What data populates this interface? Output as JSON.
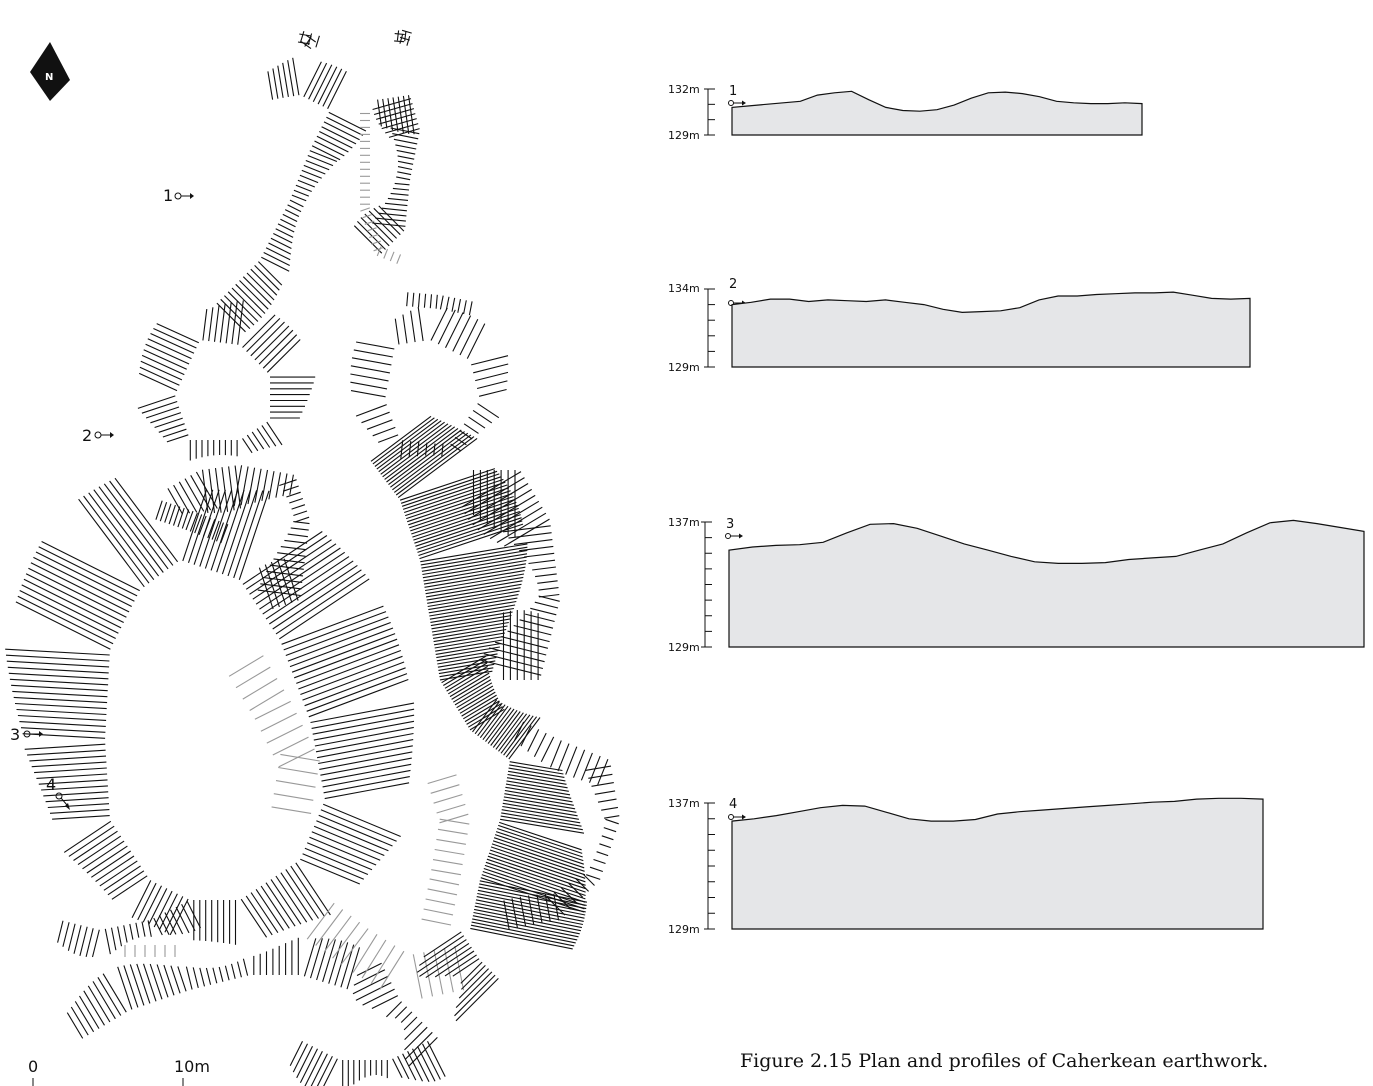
{
  "north_arrow": {
    "label": "N"
  },
  "plan": {
    "scale_bar": {
      "start_label": "0",
      "end_label": "10m"
    },
    "section_markers": [
      {
        "label": "1"
      },
      {
        "label": "2"
      },
      {
        "label": "3"
      },
      {
        "label": "4"
      }
    ]
  },
  "profiles": [
    {
      "label": "1",
      "y_top_label": "132m",
      "y_bottom_label": "129m",
      "y_range": [
        129,
        132
      ],
      "heights": [
        130.8,
        130.9,
        131.0,
        131.1,
        131.2,
        131.6,
        131.75,
        131.85,
        131.3,
        130.8,
        130.6,
        130.55,
        130.65,
        130.95,
        131.4,
        131.75,
        131.8,
        131.7,
        131.5,
        131.2,
        131.1,
        131.05,
        131.05,
        131.1,
        131.05
      ]
    },
    {
      "label": "2",
      "y_top_label": "134m",
      "y_bottom_label": "129m",
      "y_range": [
        129,
        134
      ],
      "heights": [
        133.0,
        133.15,
        133.35,
        133.35,
        133.2,
        133.3,
        133.25,
        133.2,
        133.3,
        133.15,
        133.0,
        132.7,
        132.5,
        132.55,
        132.6,
        132.8,
        133.3,
        133.55,
        133.55,
        133.65,
        133.7,
        133.75,
        133.75,
        133.8,
        133.6,
        133.4,
        133.35,
        133.4
      ]
    },
    {
      "label": "3",
      "y_top_label": "137m",
      "y_bottom_label": "129m",
      "y_range": [
        129,
        137
      ],
      "heights": [
        135.2,
        135.4,
        135.5,
        135.55,
        135.7,
        136.3,
        136.85,
        136.9,
        136.6,
        136.1,
        135.6,
        135.2,
        134.8,
        134.45,
        134.35,
        134.35,
        134.4,
        134.6,
        134.7,
        134.8,
        135.2,
        135.6,
        136.3,
        136.95,
        137.1,
        136.9,
        136.65,
        136.4
      ]
    },
    {
      "label": "4",
      "y_top_label": "137m",
      "y_bottom_label": "129m",
      "y_range": [
        129,
        137
      ],
      "heights": [
        135.85,
        136.0,
        136.2,
        136.45,
        136.7,
        136.85,
        136.8,
        136.4,
        136.0,
        135.85,
        135.85,
        135.95,
        136.3,
        136.45,
        136.55,
        136.65,
        136.75,
        136.85,
        136.95,
        137.05,
        137.1,
        137.25,
        137.3,
        137.3,
        137.25
      ]
    }
  ],
  "caption": "Figure 2.15  Plan and profiles of Caherkean earthwork."
}
